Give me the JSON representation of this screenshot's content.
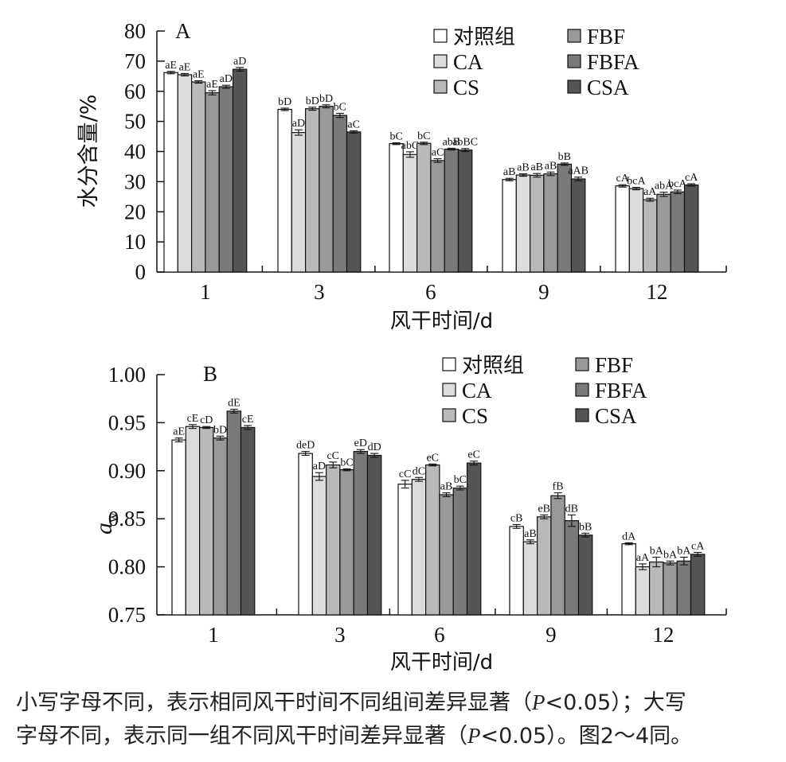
{
  "panels": [
    {
      "panel_label": "A",
      "legend_col1": [
        "对照组",
        "CA",
        "CS"
      ],
      "legend_col2": [
        "FBF",
        "FBFA",
        "CSA"
      ],
      "colors": [
        "#ffffff",
        "#dcdcdc",
        "#b9b9b9",
        "#999999",
        "#7a7a7a",
        "#555555"
      ]
    },
    {
      "panel_label": "B",
      "legend_col1": [
        "对照组",
        "CA",
        "CS"
      ],
      "legend_col2": [
        "FBF",
        "FBFA",
        "CSA"
      ],
      "colors": [
        "#ffffff",
        "#dcdcdc",
        "#b9b9b9",
        "#999999",
        "#7a7a7a",
        "#555555"
      ]
    }
  ],
  "chart_data": [
    {
      "type": "bar",
      "xlabel": "风干时间/d",
      "ylabel": "水分含量/%",
      "ylim": [
        0,
        80
      ],
      "yticks": [
        "0",
        "10",
        "20",
        "30",
        "40",
        "50",
        "60",
        "70",
        "80"
      ],
      "categories": [
        "1",
        "3",
        "6",
        "9",
        "12"
      ],
      "series": [
        {
          "name": "对照组",
          "values": [
            66.2,
            54.0,
            42.6,
            30.7,
            28.6
          ],
          "errors": [
            0.4,
            0.4,
            0.3,
            0.4,
            0.4
          ],
          "labels": [
            "aE",
            "bD",
            "bC",
            "aB",
            "cA"
          ]
        },
        {
          "name": "CA",
          "values": [
            65.5,
            46.3,
            39.0,
            32.2,
            27.7
          ],
          "errors": [
            0.4,
            0.9,
            0.9,
            0.4,
            0.4
          ],
          "labels": [
            "aE",
            "aD",
            "abC",
            "aB",
            "bcA"
          ]
        },
        {
          "name": "CS",
          "values": [
            63.1,
            54.2,
            42.7,
            32.1,
            24.0
          ],
          "errors": [
            0.4,
            0.5,
            0.4,
            0.6,
            0.5
          ],
          "labels": [
            "aE",
            "bD",
            "bC",
            "aB",
            "aA"
          ]
        },
        {
          "name": "FBF",
          "values": [
            59.5,
            55.0,
            37.0,
            32.6,
            25.8
          ],
          "errors": [
            0.7,
            0.5,
            0.6,
            0.6,
            0.7
          ],
          "labels": [
            "aE",
            "bD",
            "aC",
            "aB",
            "abA"
          ]
        },
        {
          "name": "FBFA",
          "values": [
            61.5,
            52.0,
            40.8,
            35.8,
            26.6
          ],
          "errors": [
            0.5,
            0.7,
            0.3,
            0.4,
            0.6
          ],
          "labels": [
            "aD",
            "bC",
            "abB",
            "bB",
            "bcA"
          ]
        },
        {
          "name": "CSA",
          "values": [
            67.3,
            46.5,
            40.5,
            30.9,
            28.9
          ],
          "errors": [
            0.6,
            0.4,
            0.5,
            0.6,
            0.4
          ],
          "labels": [
            "aD",
            "aC",
            "abBC",
            "aAB",
            "cA"
          ]
        }
      ]
    },
    {
      "type": "bar",
      "xlabel": "风干时间/d",
      "ylabel_main": "a",
      "ylabel_sub": "w",
      "ylim": [
        0.75,
        1.0
      ],
      "yticks": [
        "0.75",
        "0.80",
        "0.85",
        "0.90",
        "0.95",
        "1.00"
      ],
      "categories": [
        "1",
        "3",
        "6",
        "9",
        "12"
      ],
      "series": [
        {
          "name": "对照组",
          "values": [
            0.932,
            0.918,
            0.886,
            0.842,
            0.824
          ],
          "errors": [
            0.002,
            0.002,
            0.004,
            0.002,
            0.001
          ],
          "labels": [
            "aE",
            "deD",
            "cC",
            "cB",
            "dA"
          ]
        },
        {
          "name": "CA",
          "values": [
            0.946,
            0.894,
            0.891,
            0.826,
            0.8
          ],
          "errors": [
            0.002,
            0.004,
            0.002,
            0.002,
            0.003
          ],
          "labels": [
            "cE",
            "aD",
            "dC",
            "aB",
            "aA"
          ]
        },
        {
          "name": "CS",
          "values": [
            0.945,
            0.906,
            0.906,
            0.852,
            0.805
          ],
          "errors": [
            0.001,
            0.003,
            0.001,
            0.002,
            0.005
          ],
          "labels": [
            "cD",
            "cC",
            "eC",
            "eB",
            "bA"
          ]
        },
        {
          "name": "FBF",
          "values": [
            0.934,
            0.901,
            0.875,
            0.874,
            0.804
          ],
          "errors": [
            0.002,
            0.001,
            0.002,
            0.003,
            0.002
          ],
          "labels": [
            "bD",
            "bC",
            "aB",
            "fB",
            "bA"
          ]
        },
        {
          "name": "FBFA",
          "values": [
            0.962,
            0.92,
            0.882,
            0.848,
            0.806
          ],
          "errors": [
            0.002,
            0.002,
            0.002,
            0.006,
            0.004
          ],
          "labels": [
            "dE",
            "eD",
            "bC",
            "dB",
            "bA"
          ]
        },
        {
          "name": "CSA",
          "values": [
            0.945,
            0.916,
            0.908,
            0.833,
            0.813
          ],
          "errors": [
            0.002,
            0.002,
            0.002,
            0.002,
            0.002
          ],
          "labels": [
            "cE",
            "dD",
            "eC",
            "bB",
            "cA"
          ]
        }
      ]
    }
  ],
  "caption": {
    "line1_before": "小写字母不同，表示相同风干时间不同组间差异显著（",
    "line1_p": "P",
    "line1_after": "<0.05）；大写",
    "line2_before": "字母不同，表示同一组不同风干时间差异显著（",
    "line2_p": "P",
    "line2_after": "<0.05）。图2～4同。"
  }
}
